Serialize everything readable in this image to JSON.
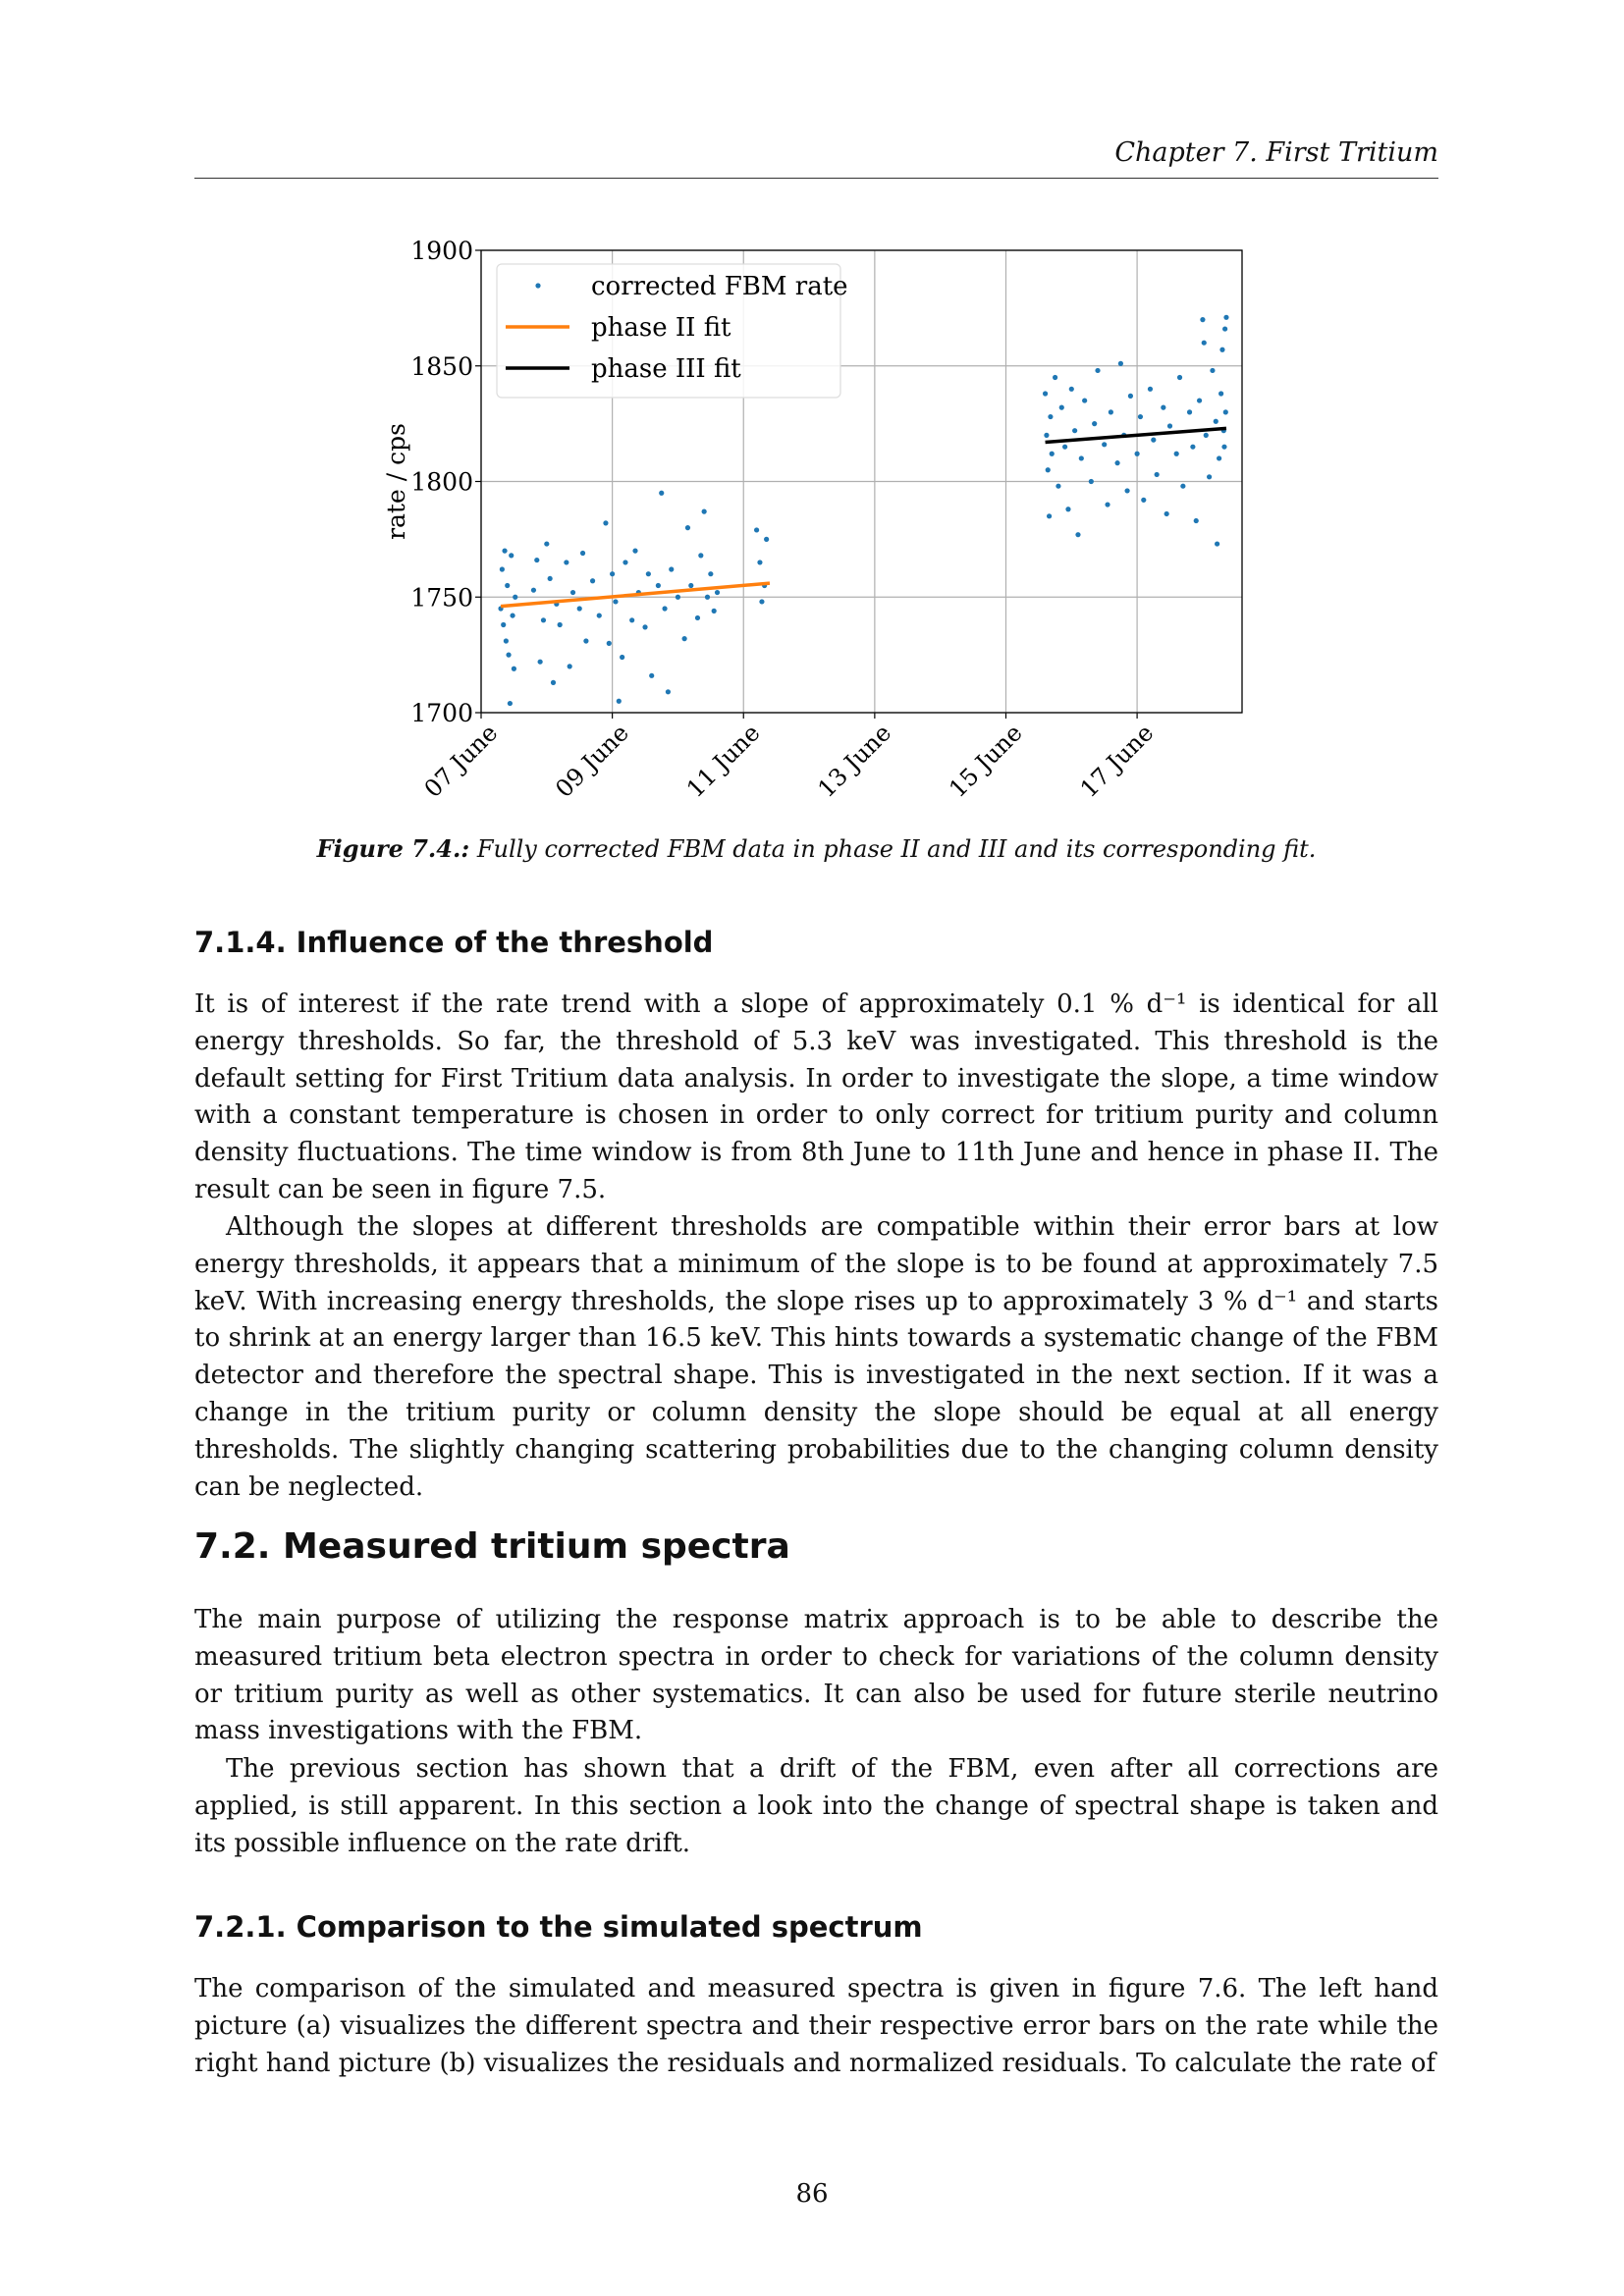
{
  "header": {
    "running_title": "Chapter 7. First Tritium"
  },
  "chart_data": {
    "type": "scatter",
    "ylabel": "rate / cps",
    "xlabel": "",
    "xlim": [
      7.0,
      18.6
    ],
    "ylim": [
      1700,
      1900
    ],
    "x_unit": "day of June",
    "xticks": [
      7,
      9,
      11,
      13,
      15,
      17
    ],
    "xtick_labels": [
      "07 June",
      "09 June",
      "11 June",
      "13 June",
      "15 June",
      "17 June"
    ],
    "yticks": [
      1700,
      1750,
      1800,
      1850,
      1900
    ],
    "ytick_labels": [
      "1700",
      "1750",
      "1800",
      "1850",
      "1900"
    ],
    "grid": true,
    "legend_position": "top-left",
    "legend": [
      "corrected FBM rate",
      "phase II fit",
      "phase III fit"
    ],
    "colors": {
      "points": "#1f77b4",
      "phase_II_fit": "#ff7f0e",
      "phase_III_fit": "#000000"
    },
    "series": [
      {
        "name": "corrected FBM rate",
        "kind": "points",
        "points": [
          [
            7.3,
            1745
          ],
          [
            7.32,
            1762
          ],
          [
            7.34,
            1738
          ],
          [
            7.36,
            1770
          ],
          [
            7.38,
            1731
          ],
          [
            7.4,
            1755
          ],
          [
            7.42,
            1725
          ],
          [
            7.44,
            1704
          ],
          [
            7.46,
            1768
          ],
          [
            7.48,
            1742
          ],
          [
            7.5,
            1719
          ],
          [
            7.52,
            1750
          ],
          [
            7.8,
            1753
          ],
          [
            7.85,
            1766
          ],
          [
            7.9,
            1722
          ],
          [
            7.95,
            1740
          ],
          [
            8.0,
            1773
          ],
          [
            8.05,
            1758
          ],
          [
            8.1,
            1713
          ],
          [
            8.15,
            1747
          ],
          [
            8.2,
            1738
          ],
          [
            8.3,
            1765
          ],
          [
            8.35,
            1720
          ],
          [
            8.4,
            1752
          ],
          [
            8.5,
            1745
          ],
          [
            8.55,
            1769
          ],
          [
            8.6,
            1731
          ],
          [
            8.7,
            1757
          ],
          [
            8.8,
            1742
          ],
          [
            8.9,
            1782
          ],
          [
            8.95,
            1730
          ],
          [
            9.0,
            1760
          ],
          [
            9.05,
            1748
          ],
          [
            9.1,
            1705
          ],
          [
            9.15,
            1724
          ],
          [
            9.2,
            1765
          ],
          [
            9.3,
            1740
          ],
          [
            9.35,
            1770
          ],
          [
            9.4,
            1752
          ],
          [
            9.5,
            1737
          ],
          [
            9.55,
            1760
          ],
          [
            9.6,
            1716
          ],
          [
            9.7,
            1755
          ],
          [
            9.75,
            1795
          ],
          [
            9.8,
            1745
          ],
          [
            9.85,
            1709
          ],
          [
            9.9,
            1762
          ],
          [
            10.0,
            1750
          ],
          [
            10.1,
            1732
          ],
          [
            10.15,
            1780
          ],
          [
            10.2,
            1755
          ],
          [
            10.3,
            1741
          ],
          [
            10.35,
            1768
          ],
          [
            10.4,
            1787
          ],
          [
            10.45,
            1750
          ],
          [
            10.5,
            1760
          ],
          [
            10.55,
            1744
          ],
          [
            10.6,
            1752
          ],
          [
            11.2,
            1779
          ],
          [
            11.25,
            1765
          ],
          [
            11.28,
            1748
          ],
          [
            11.35,
            1775
          ],
          [
            11.32,
            1755
          ],
          [
            15.6,
            1838
          ],
          [
            15.62,
            1820
          ],
          [
            15.64,
            1805
          ],
          [
            15.66,
            1785
          ],
          [
            15.68,
            1828
          ],
          [
            15.7,
            1812
          ],
          [
            15.75,
            1845
          ],
          [
            15.8,
            1798
          ],
          [
            15.85,
            1832
          ],
          [
            15.9,
            1815
          ],
          [
            15.95,
            1788
          ],
          [
            16.0,
            1840
          ],
          [
            16.05,
            1822
          ],
          [
            16.1,
            1777
          ],
          [
            16.15,
            1810
          ],
          [
            16.2,
            1835
          ],
          [
            16.3,
            1800
          ],
          [
            16.35,
            1825
          ],
          [
            16.4,
            1848
          ],
          [
            16.5,
            1816
          ],
          [
            16.55,
            1790
          ],
          [
            16.6,
            1830
          ],
          [
            16.7,
            1808
          ],
          [
            16.75,
            1851
          ],
          [
            16.8,
            1820
          ],
          [
            16.85,
            1796
          ],
          [
            16.9,
            1837
          ],
          [
            17.0,
            1812
          ],
          [
            17.05,
            1828
          ],
          [
            17.1,
            1792
          ],
          [
            17.2,
            1840
          ],
          [
            17.25,
            1818
          ],
          [
            17.3,
            1803
          ],
          [
            17.4,
            1832
          ],
          [
            17.45,
            1786
          ],
          [
            17.5,
            1824
          ],
          [
            17.6,
            1812
          ],
          [
            17.65,
            1845
          ],
          [
            17.7,
            1798
          ],
          [
            17.8,
            1830
          ],
          [
            17.85,
            1815
          ],
          [
            17.9,
            1783
          ],
          [
            17.95,
            1835
          ],
          [
            18.0,
            1870
          ],
          [
            18.02,
            1860
          ],
          [
            18.05,
            1820
          ],
          [
            18.1,
            1802
          ],
          [
            18.15,
            1848
          ],
          [
            18.2,
            1826
          ],
          [
            18.22,
            1773
          ],
          [
            18.25,
            1810
          ],
          [
            18.28,
            1838
          ],
          [
            18.3,
            1857
          ],
          [
            18.32,
            1822
          ],
          [
            18.34,
            1866
          ],
          [
            18.35,
            1830
          ],
          [
            18.36,
            1871
          ],
          [
            18.33,
            1815
          ]
        ]
      },
      {
        "name": "phase II fit",
        "kind": "line",
        "points": [
          [
            7.3,
            1746
          ],
          [
            11.4,
            1756
          ]
        ]
      },
      {
        "name": "phase III fit",
        "kind": "line",
        "points": [
          [
            15.6,
            1817
          ],
          [
            18.36,
            1823
          ]
        ]
      }
    ]
  },
  "caption": {
    "label": "Figure 7.4.:",
    "text": " Fully corrected FBM data in phase II and III and its corresponding fit."
  },
  "sections": {
    "s714": {
      "title": "7.1.4. Influence of the threshold"
    },
    "p1": "It is of interest if the rate trend with a slope of approximately 0.1 % d⁻¹ is identical for all energy thresholds. So far, the threshold of 5.3 keV was investigated. This threshold is the default setting for First Tritium data analysis. In order to investigate the slope, a time window with a constant temperature is chosen in order to only correct for tritium purity and column density fluctuations. The time window is from 8th June to 11th June and hence in phase II. The result can be seen in figure 7.5.",
    "p2": "Although the slopes at different thresholds are compatible within their error bars at low energy thresholds, it appears that a minimum of the slope is to be found at approximately 7.5 keV. With increasing energy thresholds, the slope rises up to approximately 3 % d⁻¹ and starts to shrink at an energy larger than 16.5 keV. This hints towards a systematic change of the FBM detector and therefore the spectral shape. This is investigated in the next section. If it was a change in the tritium purity or column density the slope should be equal at all energy thresholds. The slightly changing scattering probabilities due to the changing column density can be neglected.",
    "s72": {
      "title": "7.2. Measured tritium spectra"
    },
    "p3": "The main purpose of utilizing the response matrix approach is to be able to describe the measured tritium beta electron spectra in order to check for variations of the column density or tritium purity as well as other systematics. It can also be used for future sterile neutrino mass investigations with the FBM.",
    "p4": "The previous section has shown that a drift of the FBM, even after all corrections are applied, is still apparent. In this section a look into the change of spectral shape is taken and its possible influence on the rate drift.",
    "s721": {
      "title": "7.2.1. Comparison to the simulated spectrum"
    },
    "p5": "The comparison of the simulated and measured spectra is given in figure 7.6. The left hand picture (a) visualizes the different spectra and their respective error bars on the rate while the right hand picture (b) visualizes the residuals and normalized residuals. To calculate the rate of"
  },
  "footer": {
    "page_number": "86"
  }
}
